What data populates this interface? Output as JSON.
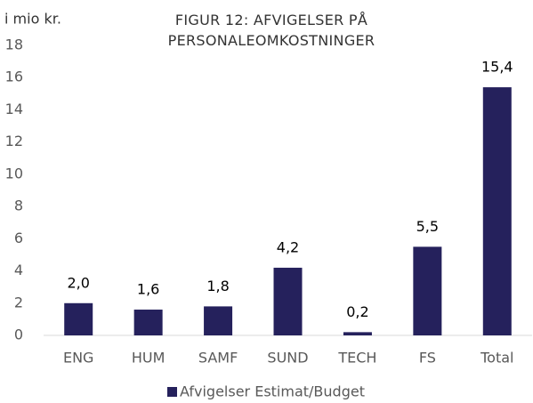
{
  "chart_data": {
    "type": "bar",
    "title": "FIGUR 12: AFVIGELSER PÅ PERSONALEOMKOSTNINGER",
    "y_label": "i mio kr.",
    "categories": [
      "ENG",
      "HUM",
      "SAMF",
      "SUND",
      "TECH",
      "FS",
      "Total"
    ],
    "series": [
      {
        "name": "Afvigelser Estimat/Budget",
        "color": "#25215c",
        "values": [
          2.0,
          1.6,
          1.8,
          4.2,
          0.2,
          5.5,
          15.4
        ],
        "value_labels": [
          "2,0",
          "1,6",
          "1,8",
          "4,2",
          "0,2",
          "5,5",
          "15,4"
        ]
      }
    ],
    "ylim": [
      0,
      18
    ],
    "yticks": [
      0,
      2,
      4,
      6,
      8,
      10,
      12,
      14,
      16,
      18
    ],
    "grid": false
  }
}
